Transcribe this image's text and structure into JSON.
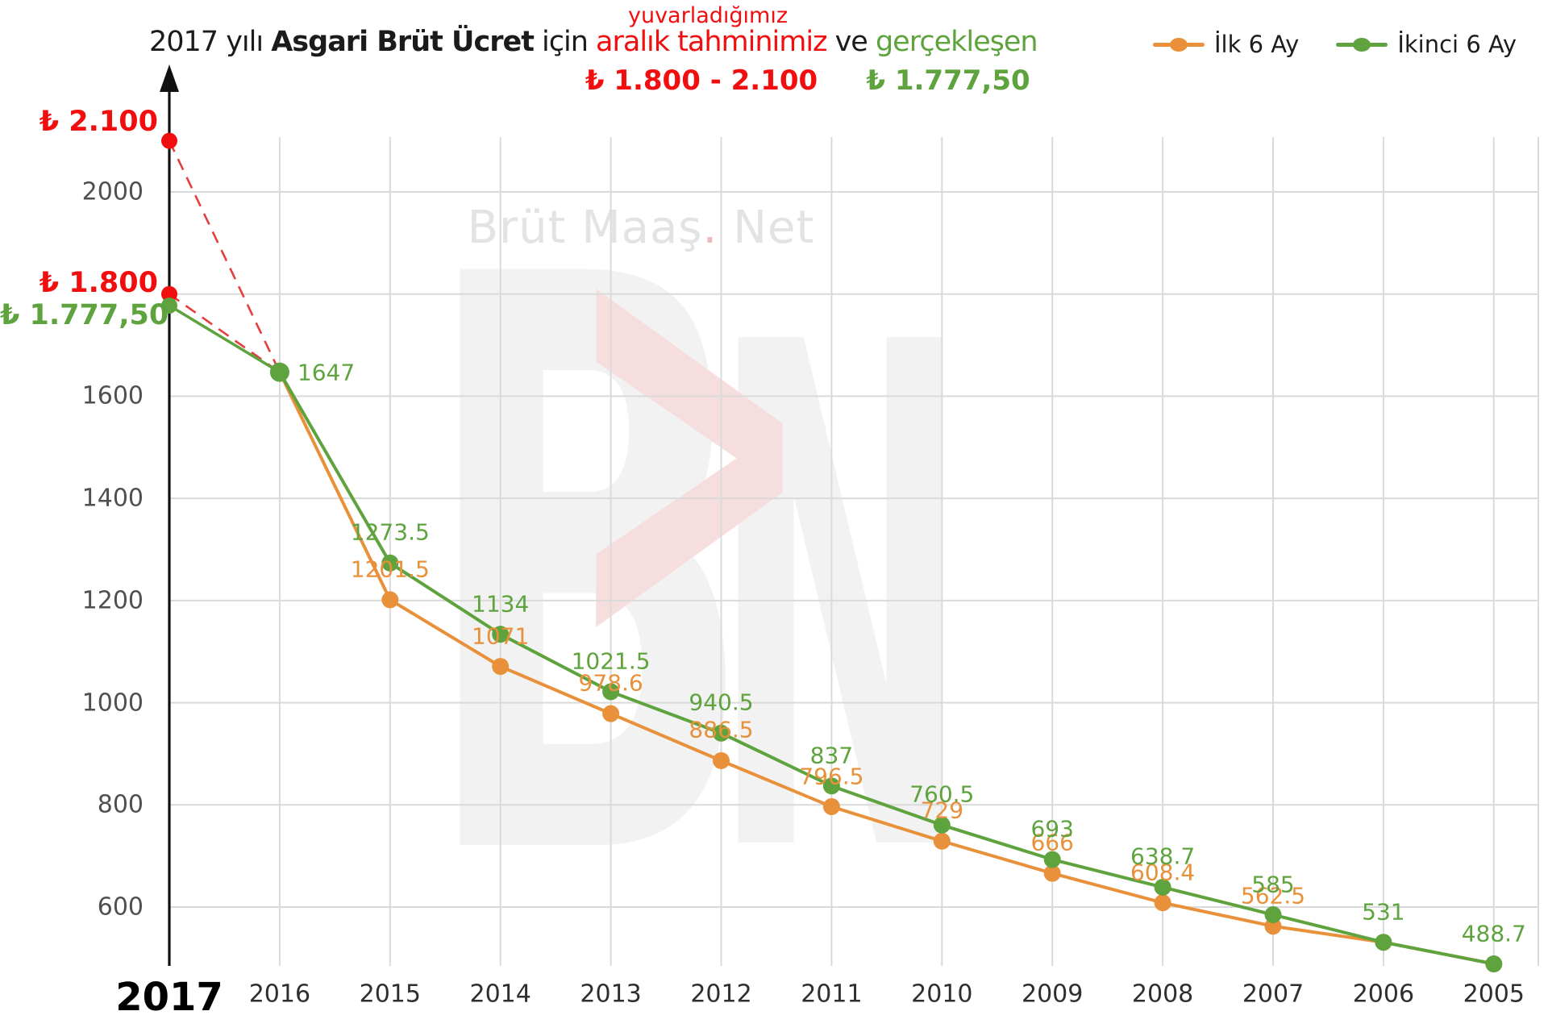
{
  "header": {
    "overline": "yuvarladığımız",
    "title": {
      "p1": "2017 yılı ",
      "p2_bold": "Asgari Brüt Ücret",
      "p3": " için ",
      "p4_red": "aralık tahminimiz",
      "p5": " ve ",
      "p6_green": "gerçekleşen"
    },
    "prediction_range": "₺ 1.800 - 2.100",
    "actual_value": "₺ 1.777,50"
  },
  "legend": {
    "items": [
      {
        "label": "İlk 6 Ay",
        "color": "#e8913a"
      },
      {
        "label": "İkinci 6 Ay",
        "color": "#5ea33e"
      }
    ]
  },
  "watermark": {
    "name": "Brüt Maaş",
    "dot": ".",
    "suffix": " Net",
    "logo_b": "B",
    "logo_chevron": ">",
    "logo_n": "N"
  },
  "colors": {
    "orange": "#e8913a",
    "green": "#5ea33e",
    "red": "#f10e0e",
    "dash_red": "#e63e3e",
    "grid": "#dadada",
    "axis": "#111111",
    "tick_text": "#4f4f4f",
    "xlabel_text": "#2e2e2e",
    "title_text": "#1b1b1b",
    "watermark_gray": "#e3e3e3",
    "watermark_dot_red": "#eab9b9",
    "watermark_logo_gray": "#f2f2f2",
    "watermark_logo_red": "#f7dede"
  },
  "chart_data": {
    "type": "line",
    "title": "2017 yılı Asgari Brüt Ücret için aralık tahminimiz ve gerçekleşen",
    "x": [
      2016,
      2015,
      2014,
      2013,
      2012,
      2011,
      2010,
      2009,
      2008,
      2007,
      2006,
      2005
    ],
    "series": [
      {
        "name": "İlk 6 Ay",
        "color": "#e8913a",
        "values": [
          1647,
          1201.5,
          1071,
          978.6,
          886.5,
          796.5,
          729,
          666,
          608.4,
          562.5,
          531,
          488.7
        ],
        "labels": [
          "",
          "1201.5",
          "1071",
          "978.6",
          "886.5",
          "796.5",
          "729",
          "666",
          "608.4",
          "562.5",
          "",
          ""
        ]
      },
      {
        "name": "İkinci 6 Ay",
        "color": "#5ea33e",
        "values": [
          1647,
          1273.5,
          1134,
          1021.5,
          940.5,
          837,
          760.5,
          693,
          638.7,
          585,
          531,
          488.7
        ],
        "labels": [
          "1647",
          "1273.5",
          "1134",
          "1021.5",
          "940.5",
          "837",
          "760.5",
          "693",
          "638.7",
          "585",
          "531",
          "488.7"
        ],
        "first_label_right": true
      }
    ],
    "forecast_2017": {
      "year": 2017,
      "high": 2100,
      "low": 1800,
      "actual": 1777.5,
      "anchor_year": 2016,
      "anchor_value": 1647,
      "high_label": "₺ 2.100",
      "low_label": "₺ 1.800",
      "actual_label": "₺ 1.777,50"
    },
    "yticks": [
      {
        "v": 2000,
        "label": "2000"
      },
      {
        "v": 1600,
        "label": "1600"
      },
      {
        "v": 1400,
        "label": "1400"
      },
      {
        "v": 1200,
        "label": "1200"
      },
      {
        "v": 1000,
        "label": "1000"
      },
      {
        "v": 800,
        "label": "800"
      },
      {
        "v": 600,
        "label": "600"
      }
    ],
    "ygrid": [
      600,
      800,
      1000,
      1200,
      1400,
      1600,
      1800,
      2000
    ],
    "xlabels": [
      {
        "year": 2017,
        "label": "2017",
        "major": true
      },
      {
        "year": 2016,
        "label": "2016"
      },
      {
        "year": 2015,
        "label": "2015"
      },
      {
        "year": 2014,
        "label": "2014"
      },
      {
        "year": 2013,
        "label": "2013"
      },
      {
        "year": 2012,
        "label": "2012"
      },
      {
        "year": 2011,
        "label": "2011"
      },
      {
        "year": 2010,
        "label": "2010"
      },
      {
        "year": 2009,
        "label": "2009"
      },
      {
        "year": 2008,
        "label": "2008"
      },
      {
        "year": 2007,
        "label": "2007"
      },
      {
        "year": 2006,
        "label": "2006"
      },
      {
        "year": 2005,
        "label": "2005"
      }
    ],
    "ylim": [
      450,
      2150
    ],
    "grid": true,
    "legend_position": "top-right"
  }
}
